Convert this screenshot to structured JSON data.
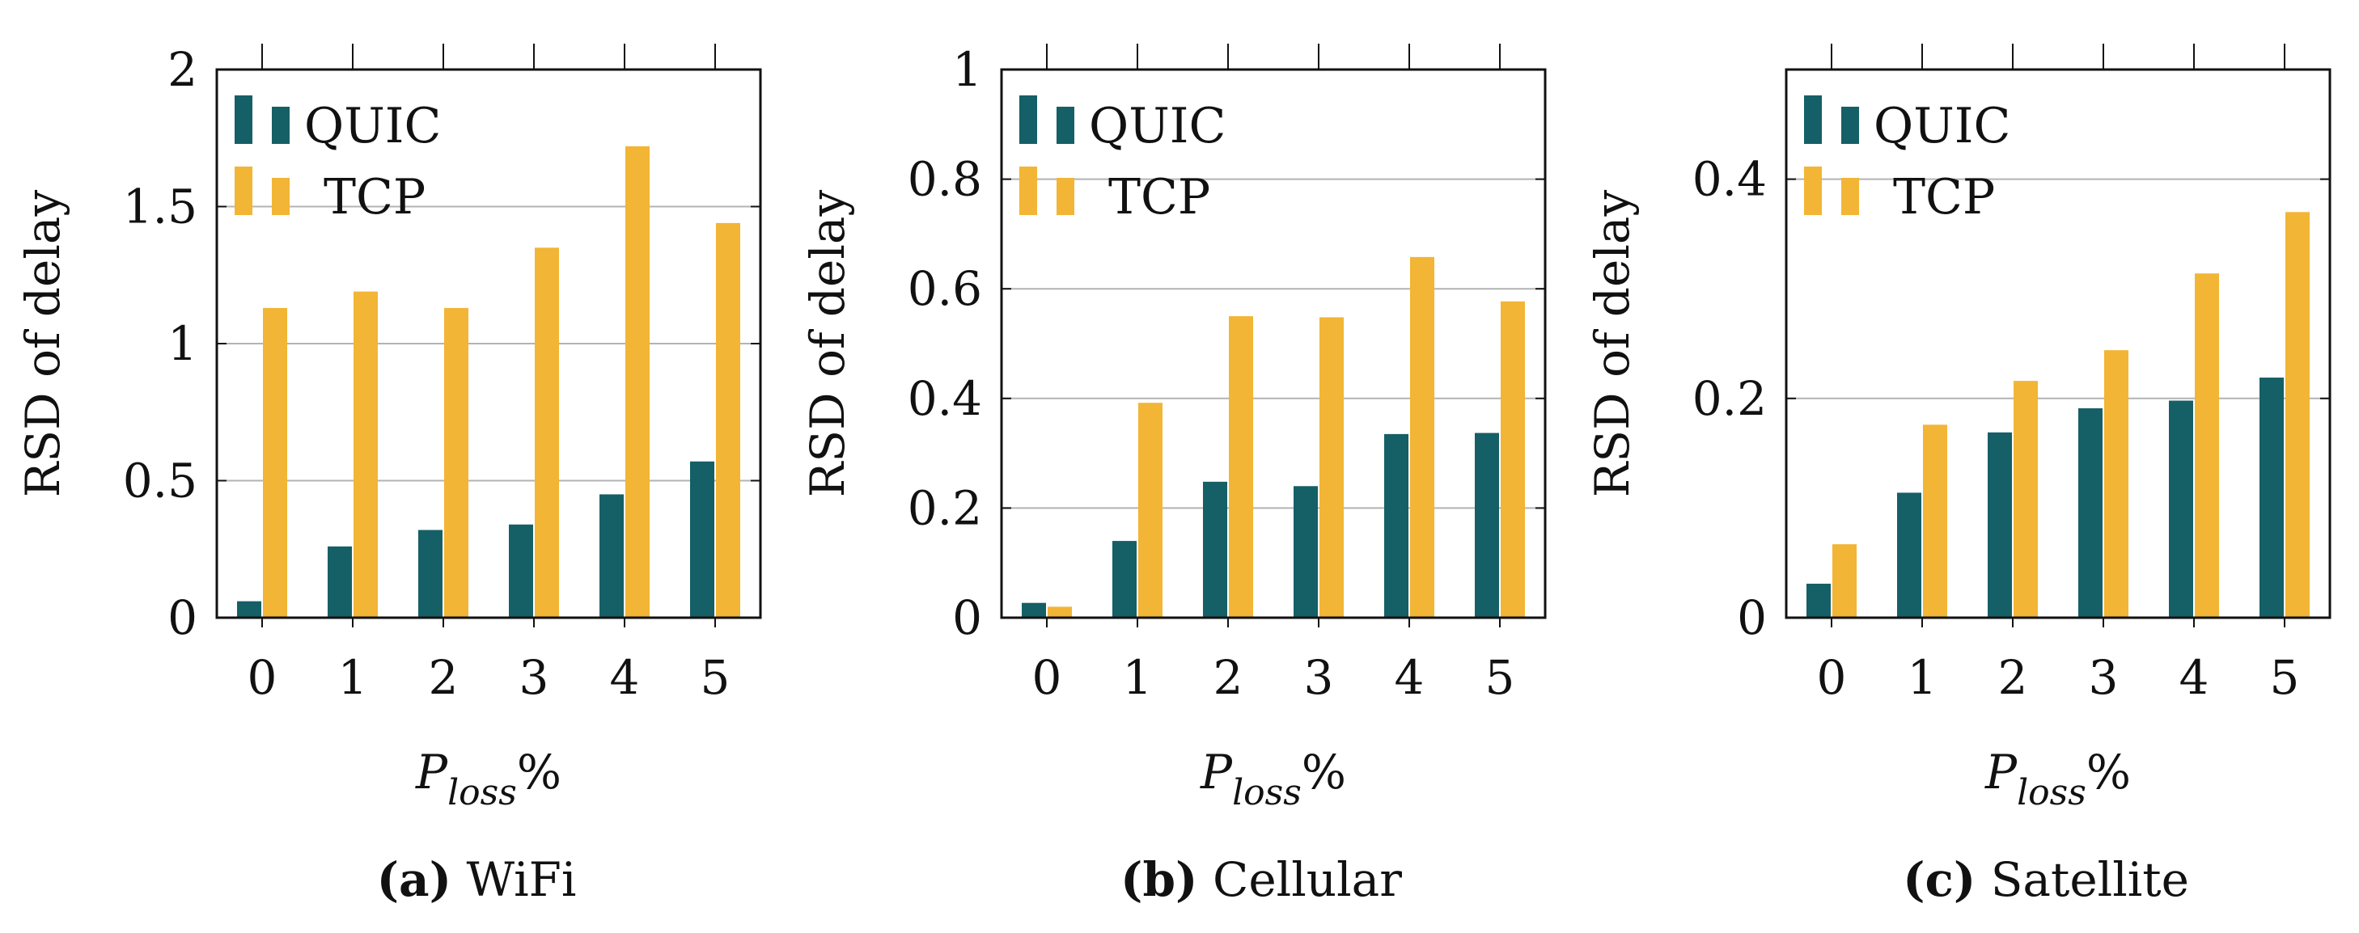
{
  "colors": {
    "QUIC": "#155f67",
    "TCP": "#f2b535",
    "grid": "#b3b3b3",
    "axis": "#111111"
  },
  "chart_data": [
    {
      "type": "bar",
      "caption_tag": "(a)",
      "caption": "WiFi",
      "xlabel_main": "P",
      "xlabel_sub": "loss",
      "xlabel_suffix": "%",
      "ylabel": "RSD of delay",
      "categories": [
        "0",
        "1",
        "2",
        "3",
        "4",
        "5"
      ],
      "ylim": [
        0,
        2
      ],
      "yticks": [
        0,
        0.5,
        1,
        1.5,
        2
      ],
      "ytick_labels": [
        "0",
        "0.5",
        "1",
        "1.5",
        "2"
      ],
      "grid": true,
      "legend_position": "top-left",
      "series": [
        {
          "name": "QUIC",
          "values": [
            0.06,
            0.26,
            0.32,
            0.34,
            0.45,
            0.57
          ]
        },
        {
          "name": "TCP",
          "values": [
            1.13,
            1.19,
            1.13,
            1.35,
            1.72,
            1.44
          ]
        }
      ]
    },
    {
      "type": "bar",
      "caption_tag": "(b)",
      "caption": "Cellular",
      "xlabel_main": "P",
      "xlabel_sub": "loss",
      "xlabel_suffix": "%",
      "ylabel": "RSD of delay",
      "categories": [
        "0",
        "1",
        "2",
        "3",
        "4",
        "5"
      ],
      "ylim": [
        0,
        1
      ],
      "yticks": [
        0,
        0.2,
        0.4,
        0.6,
        0.8,
        1
      ],
      "ytick_labels": [
        "0",
        "0.2",
        "0.4",
        "0.6",
        "0.8",
        "1"
      ],
      "grid": true,
      "legend_position": "top-left",
      "series": [
        {
          "name": "QUIC",
          "values": [
            0.027,
            0.14,
            0.248,
            0.24,
            0.335,
            0.337
          ]
        },
        {
          "name": "TCP",
          "values": [
            0.02,
            0.392,
            0.55,
            0.548,
            0.658,
            0.577
          ]
        }
      ]
    },
    {
      "type": "bar",
      "caption_tag": "(c)",
      "caption": "Satellite",
      "xlabel_main": "P",
      "xlabel_sub": "loss",
      "xlabel_suffix": "%",
      "ylabel": "RSD of delay",
      "categories": [
        "0",
        "1",
        "2",
        "3",
        "4",
        "5"
      ],
      "ylim": [
        0,
        0.5
      ],
      "yticks": [
        0,
        0.2,
        0.4
      ],
      "ytick_labels": [
        "0",
        "0.2",
        "0.4"
      ],
      "grid": true,
      "legend_position": "top-left",
      "series": [
        {
          "name": "QUIC",
          "values": [
            0.031,
            0.114,
            0.169,
            0.191,
            0.198,
            0.219
          ]
        },
        {
          "name": "TCP",
          "values": [
            0.067,
            0.176,
            0.216,
            0.244,
            0.314,
            0.37
          ]
        }
      ]
    }
  ]
}
